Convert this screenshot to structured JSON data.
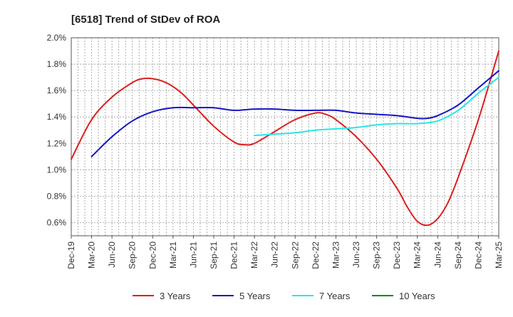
{
  "chart_data": {
    "type": "line",
    "title": "[6518]  Trend of StDev of ROA",
    "xlabel": "",
    "ylabel": "",
    "ylim": [
      0.5,
      2.0
    ],
    "y_ticks": [
      0.6,
      0.8,
      1.0,
      1.2,
      1.4,
      1.6,
      1.8,
      2.0
    ],
    "y_tick_labels": [
      "0.6%",
      "0.8%",
      "1.0%",
      "1.2%",
      "1.4%",
      "1.6%",
      "1.8%",
      "2.0%"
    ],
    "x_tick_labels": [
      "Dec-19",
      "Mar-20",
      "Jun-20",
      "Sep-20",
      "Dec-20",
      "Mar-21",
      "Jun-21",
      "Sep-21",
      "Dec-21",
      "Mar-22",
      "Jun-22",
      "Sep-22",
      "Dec-22",
      "Mar-23",
      "Jun-23",
      "Sep-23",
      "Dec-23",
      "Mar-24",
      "Jun-24",
      "Sep-24",
      "Dec-24",
      "Mar-25"
    ],
    "grid": true,
    "legend_position": "bottom",
    "series": [
      {
        "name": "3 Years",
        "color": "#dd1f1f",
        "values": [
          [
            0,
            1.08
          ],
          [
            1,
            1.38
          ],
          [
            2,
            1.55
          ],
          [
            3,
            1.66
          ],
          [
            3.5,
            1.69
          ],
          [
            4,
            1.69
          ],
          [
            4.5,
            1.67
          ],
          [
            5,
            1.63
          ],
          [
            5.5,
            1.57
          ],
          [
            6,
            1.49
          ],
          [
            7,
            1.33
          ],
          [
            8,
            1.21
          ],
          [
            8.5,
            1.19
          ],
          [
            9,
            1.2
          ],
          [
            10,
            1.29
          ],
          [
            11,
            1.38
          ],
          [
            12,
            1.43
          ],
          [
            12.5,
            1.42
          ],
          [
            13,
            1.38
          ],
          [
            14,
            1.25
          ],
          [
            15,
            1.08
          ],
          [
            16,
            0.86
          ],
          [
            16.5,
            0.72
          ],
          [
            17,
            0.61
          ],
          [
            17.5,
            0.58
          ],
          [
            18,
            0.63
          ],
          [
            18.5,
            0.75
          ],
          [
            19,
            0.94
          ],
          [
            20,
            1.38
          ],
          [
            21,
            1.9
          ]
        ]
      },
      {
        "name": "5 Years",
        "color": "#1414c8",
        "values": [
          [
            1,
            1.1
          ],
          [
            2,
            1.25
          ],
          [
            3,
            1.37
          ],
          [
            4,
            1.44
          ],
          [
            5,
            1.47
          ],
          [
            6,
            1.47
          ],
          [
            7,
            1.47
          ],
          [
            8,
            1.45
          ],
          [
            9,
            1.46
          ],
          [
            10,
            1.46
          ],
          [
            11,
            1.45
          ],
          [
            12,
            1.45
          ],
          [
            13,
            1.45
          ],
          [
            14,
            1.43
          ],
          [
            15,
            1.42
          ],
          [
            16,
            1.41
          ],
          [
            17,
            1.39
          ],
          [
            17.5,
            1.39
          ],
          [
            18,
            1.41
          ],
          [
            19,
            1.49
          ],
          [
            20,
            1.62
          ],
          [
            21,
            1.75
          ]
        ]
      },
      {
        "name": "7 Years",
        "color": "#27e6e6",
        "values": [
          [
            9,
            1.26
          ],
          [
            10,
            1.27
          ],
          [
            11,
            1.28
          ],
          [
            12,
            1.3
          ],
          [
            13,
            1.31
          ],
          [
            14,
            1.32
          ],
          [
            15,
            1.34
          ],
          [
            16,
            1.35
          ],
          [
            17,
            1.35
          ],
          [
            18,
            1.37
          ],
          [
            19,
            1.45
          ],
          [
            20,
            1.58
          ],
          [
            21,
            1.7
          ]
        ]
      },
      {
        "name": "10 Years",
        "color": "#0f8a0f",
        "values": []
      }
    ]
  }
}
